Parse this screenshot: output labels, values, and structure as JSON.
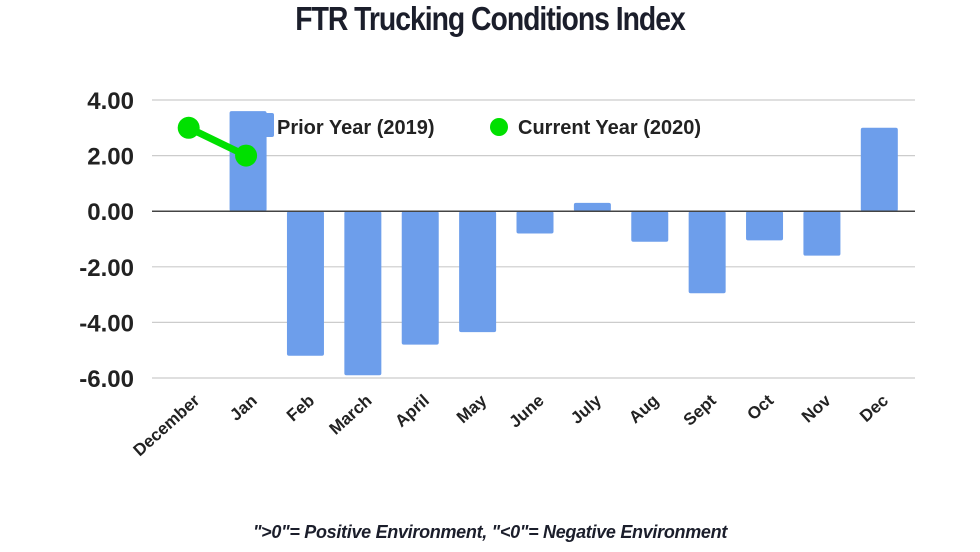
{
  "chart_data": {
    "type": "bar",
    "title": "FTR Trucking Conditions Index",
    "footnote": "\">0\"= Positive Environment, \"<0\"= Negative Environment",
    "xlabel": "",
    "ylabel": "",
    "ylim": [
      -6,
      4
    ],
    "yticks": [
      4,
      2,
      0,
      -2,
      -4,
      -6
    ],
    "ytick_labels": [
      "4.00",
      "2.00",
      "0.00",
      "-2.00",
      "-4.00",
      "-6.00"
    ],
    "grid": true,
    "legend_position": "top-center",
    "categories": [
      "December",
      "Jan",
      "Feb",
      "March",
      "April",
      "May",
      "June",
      "July",
      "Aug",
      "Sept",
      "Oct",
      "Nov",
      "Dec"
    ],
    "series": [
      {
        "name": "Prior Year (2019)",
        "kind": "bar",
        "color": "#6d9eeb",
        "values": [
          null,
          3.6,
          -5.2,
          -5.9,
          -4.8,
          -4.35,
          -0.8,
          0.3,
          -1.1,
          -2.95,
          -1.05,
          -1.6,
          3.0
        ]
      },
      {
        "name": "Current Year (2020)",
        "kind": "line",
        "color": "#00e000",
        "values": [
          3.0,
          2.0,
          null,
          null,
          null,
          null,
          null,
          null,
          null,
          null,
          null,
          null,
          null
        ]
      }
    ]
  }
}
